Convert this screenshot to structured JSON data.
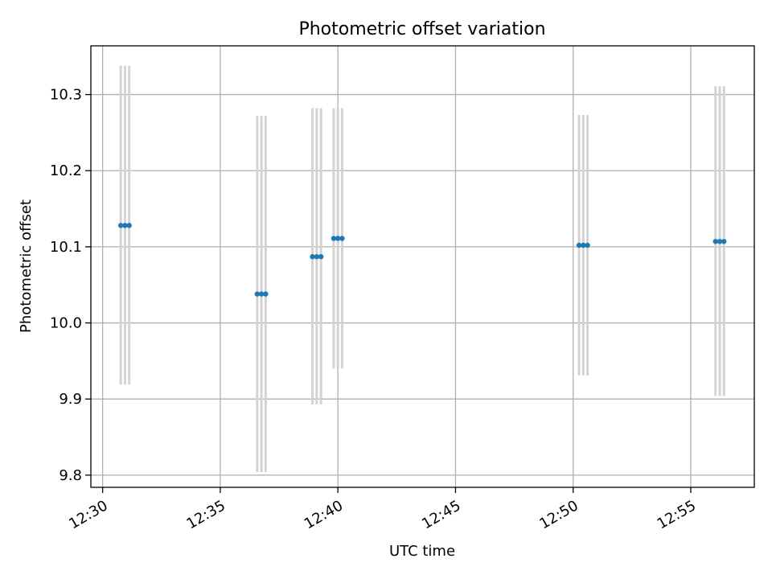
{
  "chart_data": {
    "type": "scatter",
    "title": "Photometric offset variation",
    "xlabel": "UTC time",
    "ylabel": "Photometric offset",
    "x_unit": "minutes after 12:00 UTC",
    "xlim": [
      29.5,
      57.7
    ],
    "ylim": [
      9.784,
      10.364
    ],
    "x_ticks": [
      30,
      35,
      40,
      45,
      50,
      55
    ],
    "x_tick_labels": [
      "12:30",
      "12:35",
      "12:40",
      "12:45",
      "12:50",
      "12:55"
    ],
    "y_ticks": [
      9.8,
      9.9,
      10.0,
      10.1,
      10.2,
      10.3
    ],
    "y_tick_labels": [
      "9.8",
      "9.9",
      "10.0",
      "10.1",
      "10.2",
      "10.3"
    ],
    "grid": true,
    "point_color": "#1f77b4",
    "errorbar_color": "#d3d3d3",
    "frame_color": "#000000",
    "grid_color": "#b0b0b0",
    "points": [
      {
        "x": 30.77,
        "y": 10.128,
        "ylow": 9.919,
        "yhigh": 10.338
      },
      {
        "x": 30.95,
        "y": 10.128,
        "ylow": 9.919,
        "yhigh": 10.338
      },
      {
        "x": 31.13,
        "y": 10.128,
        "ylow": 9.919,
        "yhigh": 10.338
      },
      {
        "x": 36.57,
        "y": 10.038,
        "ylow": 9.804,
        "yhigh": 10.272
      },
      {
        "x": 36.75,
        "y": 10.038,
        "ylow": 9.804,
        "yhigh": 10.272
      },
      {
        "x": 36.93,
        "y": 10.038,
        "ylow": 9.804,
        "yhigh": 10.272
      },
      {
        "x": 38.92,
        "y": 10.087,
        "ylow": 9.893,
        "yhigh": 10.282
      },
      {
        "x": 39.1,
        "y": 10.087,
        "ylow": 9.893,
        "yhigh": 10.282
      },
      {
        "x": 39.28,
        "y": 10.087,
        "ylow": 9.893,
        "yhigh": 10.282
      },
      {
        "x": 39.82,
        "y": 10.111,
        "ylow": 9.94,
        "yhigh": 10.282
      },
      {
        "x": 40.0,
        "y": 10.111,
        "ylow": 9.94,
        "yhigh": 10.282
      },
      {
        "x": 40.18,
        "y": 10.111,
        "ylow": 9.94,
        "yhigh": 10.282
      },
      {
        "x": 50.25,
        "y": 10.102,
        "ylow": 9.931,
        "yhigh": 10.273
      },
      {
        "x": 50.43,
        "y": 10.102,
        "ylow": 9.931,
        "yhigh": 10.273
      },
      {
        "x": 50.61,
        "y": 10.102,
        "ylow": 9.931,
        "yhigh": 10.273
      },
      {
        "x": 56.05,
        "y": 10.107,
        "ylow": 9.904,
        "yhigh": 10.311
      },
      {
        "x": 56.23,
        "y": 10.107,
        "ylow": 9.904,
        "yhigh": 10.311
      },
      {
        "x": 56.41,
        "y": 10.107,
        "ylow": 9.904,
        "yhigh": 10.311
      }
    ]
  }
}
